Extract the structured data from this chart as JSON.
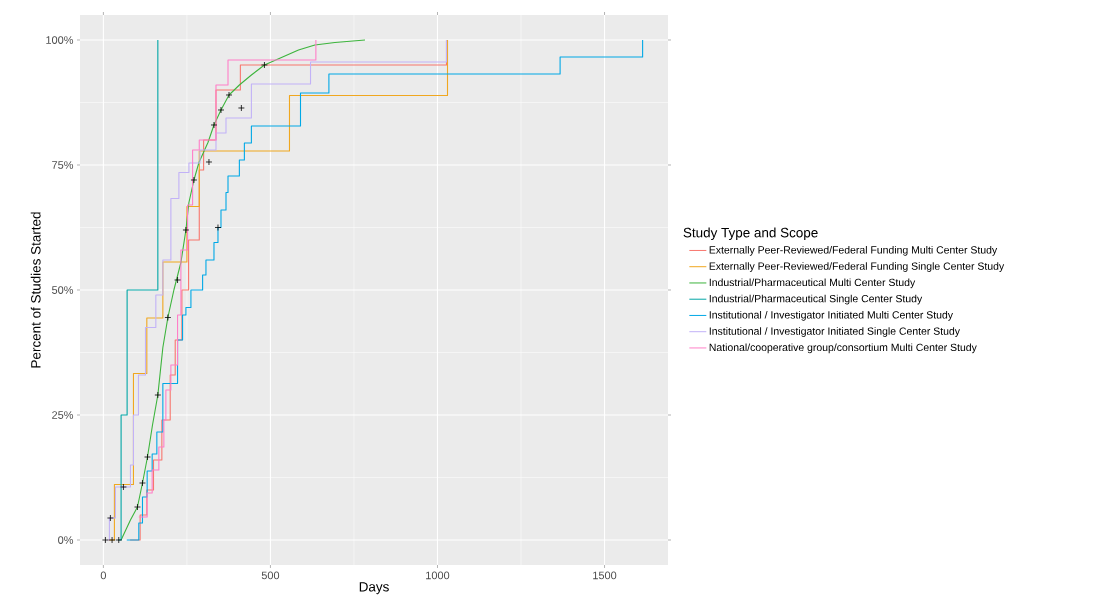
{
  "chart_data": {
    "type": "step",
    "xlabel": "Days",
    "ylabel": "Percent of Studies Started",
    "legend_title": "Study Type and Scope",
    "legend": "right",
    "grid": true,
    "xlim": [
      -70,
      1690
    ],
    "ylim": [
      -5,
      105
    ],
    "xticks": [
      0,
      500,
      1000,
      1500
    ],
    "yticks": [
      {
        "value": 0,
        "label": "0%"
      },
      {
        "value": 25,
        "label": "25%"
      },
      {
        "value": 50,
        "label": "50%"
      },
      {
        "value": 75,
        "label": "75%"
      },
      {
        "value": 100,
        "label": "100%"
      }
    ],
    "series": [
      {
        "name": "Externally Peer-Reviewed/Federal Funding Multi Center Study",
        "color": "#f8766d",
        "x": [
          80,
          110,
          130,
          150,
          175,
          200,
          215,
          235,
          255,
          287,
          300,
          337,
          410,
          1027,
          1027
        ],
        "values": [
          0,
          5,
          10,
          16,
          24,
          33,
          40,
          50,
          60,
          74,
          80,
          90,
          95,
          100,
          100
        ]
      },
      {
        "name": "Externally Peer-Reviewed/Federal Funding Single Center Study",
        "color": "#f0a71f",
        "x": [
          15,
          33,
          90,
          130,
          178,
          250,
          287,
          557,
          1030,
          1030
        ],
        "values": [
          0,
          11.1,
          33.3,
          44.4,
          55.6,
          66.7,
          77.8,
          88.9,
          100,
          100
        ]
      },
      {
        "name": "Industrial/Pharmaceutical Multi Center Study",
        "type": "line",
        "color": "#3cb43c",
        "x": [
          53,
          81,
          102,
          117,
          132,
          147,
          163,
          178,
          193,
          211,
          232,
          247,
          256,
          271,
          286,
          313,
          331,
          352,
          376,
          407,
          443,
          482,
          533,
          584,
          633,
          693,
          783
        ],
        "values": [
          0,
          4,
          6.6,
          11.4,
          16.6,
          23,
          29,
          38.5,
          44.5,
          50,
          55.5,
          62,
          67.5,
          72,
          75.5,
          79.5,
          83,
          86,
          89,
          91,
          93,
          95,
          96.5,
          98,
          99,
          99.5,
          100
        ]
      },
      {
        "name": "Industrial/Pharmaceutical Single Center Study",
        "color": "#00a6a6",
        "x": [
          45,
          53,
          71,
          163,
          163,
          163
        ],
        "values": [
          0,
          25,
          50,
          75,
          100,
          100
        ]
      },
      {
        "name": "Institutional / Investigator Initiated Multi Center Study",
        "color": "#00a8e6",
        "x": [
          70,
          106,
          117,
          131,
          146,
          160,
          178,
          222,
          237,
          247,
          262,
          297,
          307,
          331,
          343,
          352,
          367,
          373,
          407,
          422,
          443,
          590,
          675,
          1367,
          1614,
          1614
        ],
        "values": [
          0,
          3.4,
          8.6,
          13.8,
          17.2,
          21.6,
          31.3,
          40,
          45,
          46.5,
          50,
          53,
          56,
          59.5,
          62.5,
          66,
          69.5,
          72.8,
          76,
          79.4,
          82.8,
          89.4,
          93.2,
          96.6,
          100,
          100
        ]
      },
      {
        "name": "Institutional / Investigator Initiated Single Center Study",
        "color": "#c2b2f7",
        "x": [
          12,
          18,
          36,
          81,
          90,
          105,
          126,
          157,
          178,
          202,
          226,
          256,
          289,
          337,
          367,
          443,
          620,
          1027,
          1027
        ],
        "values": [
          0,
          4.4,
          10.6,
          15,
          25,
          33,
          42.5,
          49,
          56,
          68.3,
          73.5,
          75.4,
          78,
          81.4,
          84.4,
          91.2,
          95.6,
          100,
          100
        ]
      },
      {
        "name": "National/cooperative group/consortium Multi Center Study",
        "color": "#ff7fc8",
        "x": [
          106,
          131,
          146,
          166,
          181,
          187,
          202,
          222,
          232,
          252,
          267,
          287,
          337,
          373,
          636,
          636
        ],
        "values": [
          4.6,
          9.4,
          14,
          18.6,
          24,
          30,
          35,
          45,
          58,
          67,
          78,
          80,
          91,
          96,
          100,
          100
        ]
      },
      {
        "type": "scatter",
        "marker": "cross",
        "color": "#000000",
        "x": [
          6,
          26,
          46,
          21,
          60,
          102,
          117,
          132,
          163,
          193,
          222,
          247,
          271,
          316,
          331,
          343,
          352,
          376,
          413,
          482
        ],
        "values": [
          0,
          0,
          0,
          4.4,
          10.6,
          6.6,
          11.4,
          16.6,
          29,
          44.5,
          52,
          62,
          72,
          75.6,
          83,
          62.5,
          86,
          89,
          86.4,
          95
        ]
      }
    ]
  }
}
